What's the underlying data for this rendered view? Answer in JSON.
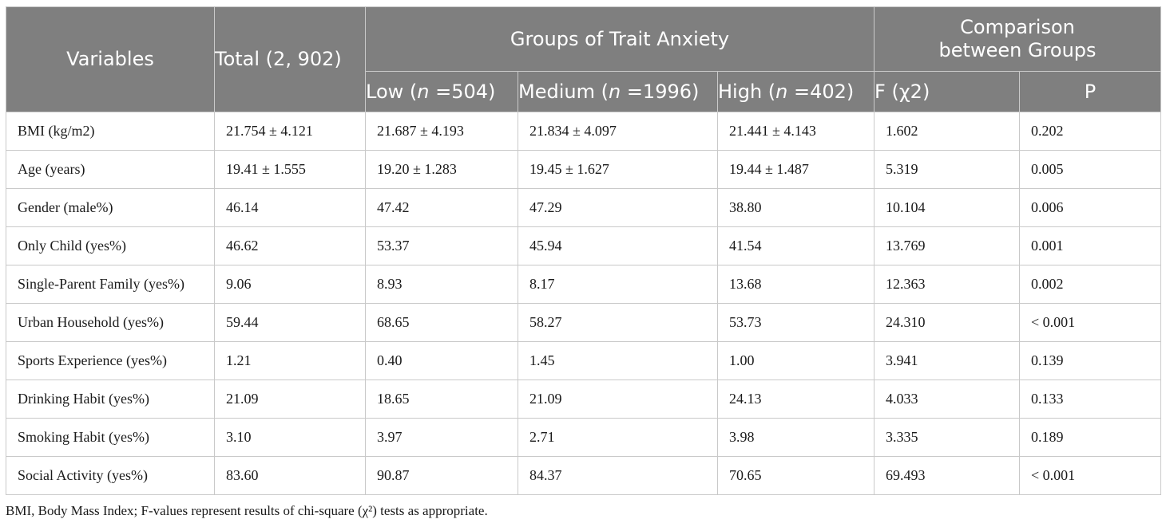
{
  "table": {
    "headers": {
      "variables": "Variables",
      "total": "Total (2, 902)",
      "groups_title": "Groups of Trait Anxiety",
      "comparison_line1": "Comparison",
      "comparison_line2": "between Groups",
      "low_prefix": "Low (",
      "low_n": "n",
      "low_suffix": " =504)",
      "medium_prefix": "Medium (",
      "medium_n": "n",
      "medium_suffix": " =1996)",
      "high_prefix": "High (",
      "high_n": "n",
      "high_suffix": " =402)",
      "f_stat": "F (χ2)",
      "p_value": "P"
    },
    "rows": [
      [
        "BMI (kg/m2)",
        "21.754 ± 4.121",
        "21.687 ± 4.193",
        "21.834 ± 4.097",
        "21.441 ± 4.143",
        "1.602",
        "0.202"
      ],
      [
        "Age (years)",
        "19.41 ± 1.555",
        "19.20 ± 1.283",
        "19.45 ± 1.627",
        "19.44 ± 1.487",
        "5.319",
        "0.005"
      ],
      [
        "Gender (male%)",
        "46.14",
        "47.42",
        "47.29",
        "38.80",
        "10.104",
        "0.006"
      ],
      [
        "Only Child (yes%)",
        "46.62",
        "53.37",
        "45.94",
        "41.54",
        "13.769",
        "0.001"
      ],
      [
        "Single-Parent Family (yes%)",
        "9.06",
        "8.93",
        "8.17",
        "13.68",
        "12.363",
        "0.002"
      ],
      [
        "Urban Household (yes%)",
        "59.44",
        "68.65",
        "58.27",
        "53.73",
        "24.310",
        "< 0.001"
      ],
      [
        "Sports Experience (yes%)",
        "1.21",
        "0.40",
        "1.45",
        "1.00",
        "3.941",
        "0.139"
      ],
      [
        "Drinking Habit (yes%)",
        "21.09",
        "18.65",
        "21.09",
        "24.13",
        "4.033",
        "0.133"
      ],
      [
        "Smoking Habit (yes%)",
        "3.10",
        "3.97",
        "2.71",
        "3.98",
        "3.335",
        "0.189"
      ],
      [
        "Social Activity (yes%)",
        "83.60",
        "90.87",
        "84.37",
        "70.65",
        "69.493",
        "< 0.001"
      ]
    ]
  },
  "footnote": "BMI, Body Mass Index; F-values represent results of chi-square (χ²) tests as appropriate."
}
